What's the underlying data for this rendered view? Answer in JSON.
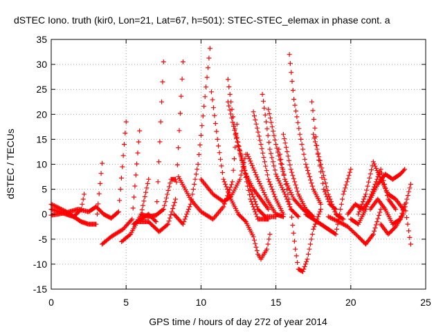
{
  "chart_data": {
    "type": "scatter",
    "title": "dSTEC Iono. truth (kir0, Lon=21, Lat=67, h=501): STEC-STEC_elemax in phase cont. a",
    "xlabel": "GPS time / hours of day 272 of year 2014",
    "ylabel": "dSTEC  / TECUs",
    "xlim": [
      0,
      25
    ],
    "ylim": [
      -15,
      35
    ],
    "x_ticks": [
      "0",
      "5",
      "10",
      "15",
      "20",
      "25"
    ],
    "y_ticks": [
      "-15",
      "-10",
      "-5",
      "0",
      "5",
      "10",
      "15",
      "20",
      "25",
      "30",
      "35"
    ],
    "x_tick_values": [
      0,
      5,
      10,
      15,
      20,
      25
    ],
    "y_tick_values": [
      -15,
      -10,
      -5,
      0,
      5,
      10,
      15,
      20,
      25,
      30,
      35
    ],
    "grid": true,
    "marker": "+",
    "color": "#ff0000",
    "series": [
      {
        "points": [
          [
            0,
            2
          ],
          [
            1,
            0.5
          ],
          [
            1.5,
            -0.5
          ],
          [
            2,
            -1.5
          ],
          [
            2.5,
            -2
          ],
          [
            3,
            -2
          ],
          [
            3.4,
            10.2
          ]
        ]
      },
      {
        "points": [
          [
            0,
            1
          ],
          [
            1,
            0
          ],
          [
            1.5,
            -0.5
          ],
          [
            2,
            1
          ],
          [
            2.2,
            4
          ]
        ]
      },
      {
        "points": [
          [
            0,
            -0.2
          ],
          [
            1,
            0.3
          ],
          [
            1.8,
            1
          ],
          [
            2.5,
            0.5
          ],
          [
            3,
            1.5
          ],
          [
            3.5,
            0
          ],
          [
            4,
            -0.8
          ],
          [
            4.5,
            0.5
          ],
          [
            5,
            18.5
          ]
        ]
      },
      {
        "points": [
          [
            3.4,
            -6
          ],
          [
            4,
            -4.5
          ],
          [
            4.8,
            -3
          ],
          [
            5.4,
            -1
          ],
          [
            5.9,
            16.7
          ]
        ]
      },
      {
        "points": [
          [
            4.7,
            -5.5
          ],
          [
            5.3,
            -4
          ],
          [
            6,
            0
          ],
          [
            6.5,
            7
          ]
        ]
      },
      {
        "points": [
          [
            5.5,
            -2
          ],
          [
            6,
            -1
          ],
          [
            6.5,
            0
          ],
          [
            7,
            -1.5
          ],
          [
            7.5,
            30.5
          ]
        ]
      },
      {
        "points": [
          [
            5.8,
            -1.5
          ],
          [
            6.5,
            -1.5
          ],
          [
            7.2,
            -3.5
          ],
          [
            7.8,
            -2
          ],
          [
            8.3,
            3
          ],
          [
            8.8,
            30.5
          ]
        ]
      },
      {
        "points": [
          [
            6,
            0
          ],
          [
            6.5,
            -0.5
          ],
          [
            7,
            -0.2
          ],
          [
            7.5,
            1
          ],
          [
            8,
            7
          ],
          [
            8.3,
            7
          ]
        ]
      },
      {
        "points": [
          [
            8.2,
            0
          ],
          [
            8.8,
            -2
          ],
          [
            9.3,
            2
          ],
          [
            9.8,
            10
          ],
          [
            10.6,
            33.2
          ]
        ]
      },
      {
        "points": [
          [
            8.5,
            7.5
          ],
          [
            9.3,
            3
          ],
          [
            10,
            0.5
          ],
          [
            10.8,
            -1
          ],
          [
            11.5,
            1.5
          ],
          [
            12.1,
            6.5
          ],
          [
            12.4,
            18
          ]
        ]
      },
      {
        "points": [
          [
            10,
            7
          ],
          [
            10.8,
            4
          ],
          [
            11.5,
            2.5
          ],
          [
            12,
            3.5
          ],
          [
            12.6,
            7
          ],
          [
            13,
            12
          ]
        ]
      },
      {
        "points": [
          [
            10.7,
            24.5
          ],
          [
            11.1,
            15
          ],
          [
            11.5,
            7
          ],
          [
            12,
            3
          ],
          [
            12.5,
            0
          ],
          [
            13,
            -1.5
          ],
          [
            13.5,
            -4.5
          ],
          [
            13.8,
            -8
          ],
          [
            14,
            -9
          ],
          [
            14.4,
            -7
          ],
          [
            14.6,
            -4
          ]
        ]
      },
      {
        "points": [
          [
            11.8,
            27
          ],
          [
            12.2,
            18
          ],
          [
            12.8,
            10
          ],
          [
            13.3,
            3
          ],
          [
            13.8,
            -1
          ],
          [
            14.2,
            -1
          ],
          [
            14.5,
            -1
          ]
        ]
      },
      {
        "points": [
          [
            11.8,
            22.5
          ],
          [
            12.3,
            16
          ],
          [
            12.8,
            10
          ],
          [
            13.3,
            5
          ],
          [
            13.8,
            1
          ],
          [
            14.3,
            -0.5
          ],
          [
            15,
            -0.5
          ]
        ]
      },
      {
        "points": [
          [
            12.3,
            16
          ],
          [
            13,
            8
          ],
          [
            13.5,
            5
          ],
          [
            14,
            3
          ],
          [
            14.5,
            1
          ]
        ]
      },
      {
        "points": [
          [
            13.1,
            12
          ],
          [
            13.8,
            7
          ],
          [
            14.4,
            3
          ],
          [
            15,
            0
          ],
          [
            15.5,
            -0.5
          ]
        ]
      },
      {
        "points": [
          [
            13.5,
            20.5
          ],
          [
            14,
            14
          ],
          [
            14.5,
            7
          ],
          [
            15,
            3
          ],
          [
            15.5,
            0
          ]
        ]
      },
      {
        "points": [
          [
            14.1,
            24
          ],
          [
            14.6,
            13
          ],
          [
            15,
            8
          ],
          [
            15.6,
            4
          ],
          [
            16,
            1
          ],
          [
            16.5,
            -0.5
          ]
        ]
      },
      {
        "points": [
          [
            14.5,
            21
          ],
          [
            15,
            14
          ],
          [
            15.6,
            7
          ],
          [
            16.2,
            3
          ],
          [
            16.8,
            1
          ],
          [
            17.2,
            0
          ]
        ]
      },
      {
        "points": [
          [
            15.5,
            16
          ],
          [
            16,
            9
          ],
          [
            16.5,
            4
          ],
          [
            17,
            1
          ],
          [
            17.5,
            -0.5
          ]
        ]
      },
      {
        "points": [
          [
            15.9,
            32
          ],
          [
            16.2,
            23
          ],
          [
            16.6,
            16
          ],
          [
            17,
            10
          ],
          [
            17.5,
            5
          ],
          [
            18,
            2
          ]
        ]
      },
      {
        "points": [
          [
            15.2,
            13
          ],
          [
            15.6,
            7
          ],
          [
            16,
            1
          ],
          [
            16.3,
            -7
          ],
          [
            16.5,
            -11
          ],
          [
            16.8,
            -11.5
          ],
          [
            17.1,
            -9
          ],
          [
            17.5,
            -3
          ],
          [
            18,
            1
          ]
        ]
      },
      {
        "points": [
          [
            17,
            0
          ],
          [
            17.5,
            -1
          ],
          [
            18,
            -2
          ],
          [
            18.5,
            -3
          ],
          [
            19,
            -4
          ],
          [
            19.5,
            4
          ],
          [
            20,
            9
          ]
        ]
      },
      {
        "points": [
          [
            17.4,
            22.5
          ],
          [
            17.8,
            12
          ],
          [
            18.2,
            5
          ],
          [
            18.6,
            2
          ],
          [
            19,
            1
          ]
        ]
      },
      {
        "points": [
          [
            17.5,
            16
          ],
          [
            18,
            10
          ],
          [
            18.5,
            4
          ],
          [
            19,
            0
          ],
          [
            19.5,
            -1
          ]
        ]
      },
      {
        "points": [
          [
            18.5,
            -0.5
          ],
          [
            19.2,
            -1.5
          ],
          [
            19.8,
            -2.5
          ],
          [
            20.5,
            -4.5
          ],
          [
            21,
            -6
          ],
          [
            21.5,
            -4
          ],
          [
            22,
            1
          ]
        ]
      },
      {
        "points": [
          [
            19.8,
            0
          ],
          [
            20.3,
            2
          ],
          [
            20.8,
            1
          ],
          [
            21.3,
            3
          ],
          [
            21.8,
            6
          ],
          [
            22.3,
            8
          ],
          [
            22.8,
            7
          ],
          [
            23.3,
            8
          ],
          [
            23.6,
            9
          ]
        ]
      },
      {
        "points": [
          [
            20.5,
            0
          ],
          [
            21,
            4
          ],
          [
            21.5,
            10.5
          ],
          [
            22,
            7
          ],
          [
            22.5,
            4
          ],
          [
            23,
            3
          ],
          [
            23.5,
            1
          ]
        ]
      },
      {
        "points": [
          [
            21.3,
            1
          ],
          [
            21.8,
            3
          ],
          [
            22.3,
            1
          ],
          [
            22.8,
            -2
          ],
          [
            23.3,
            -1
          ],
          [
            23.6,
            2
          ],
          [
            24,
            -6
          ]
        ]
      },
      {
        "points": [
          [
            22,
            -2
          ],
          [
            22.5,
            -4
          ],
          [
            23,
            -2.5
          ],
          [
            23.5,
            0
          ],
          [
            24,
            6
          ]
        ]
      },
      {
        "points": [
          [
            20,
            -1
          ],
          [
            20.5,
            -2
          ],
          [
            21,
            1
          ],
          [
            21.5,
            5
          ],
          [
            22,
            9
          ],
          [
            22.5,
            3
          ],
          [
            23,
            1
          ]
        ]
      }
    ]
  }
}
